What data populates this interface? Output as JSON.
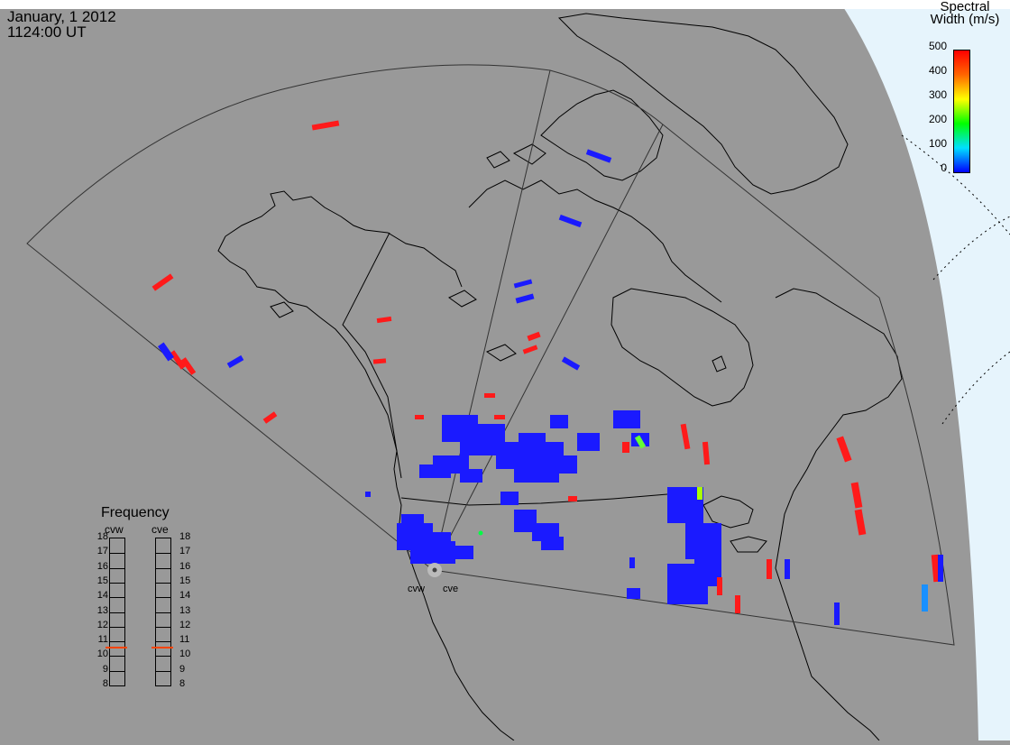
{
  "header": {
    "date": "January, 1 2012",
    "time": "1124:00 UT"
  },
  "colorbar": {
    "title_line1": "Spectral",
    "title_line2": "Width (m/s)",
    "ticks": [
      "500",
      "400",
      "300",
      "200",
      "100",
      "0"
    ],
    "gradient": [
      "#ff0000",
      "#ff8000",
      "#ffff00",
      "#00ff00",
      "#00ffff",
      "#0000ff"
    ]
  },
  "frequency_panel": {
    "title": "Frequency",
    "radars": [
      "cvw",
      "cve"
    ],
    "scale": [
      "18",
      "17",
      "16",
      "15",
      "14",
      "13",
      "12",
      "11",
      "10",
      "9",
      "8"
    ],
    "cvw_mhz": 10.6,
    "cve_mhz": 10.6,
    "marker_color": "#ff4400"
  },
  "radars": {
    "west_label": "cvw",
    "east_label": "cve"
  },
  "colors": {
    "land": "#999999",
    "ocean_beyond": "#e6f4fc",
    "scatter_low": "#1a1aff",
    "scatter_high": "#ff1a1a"
  }
}
